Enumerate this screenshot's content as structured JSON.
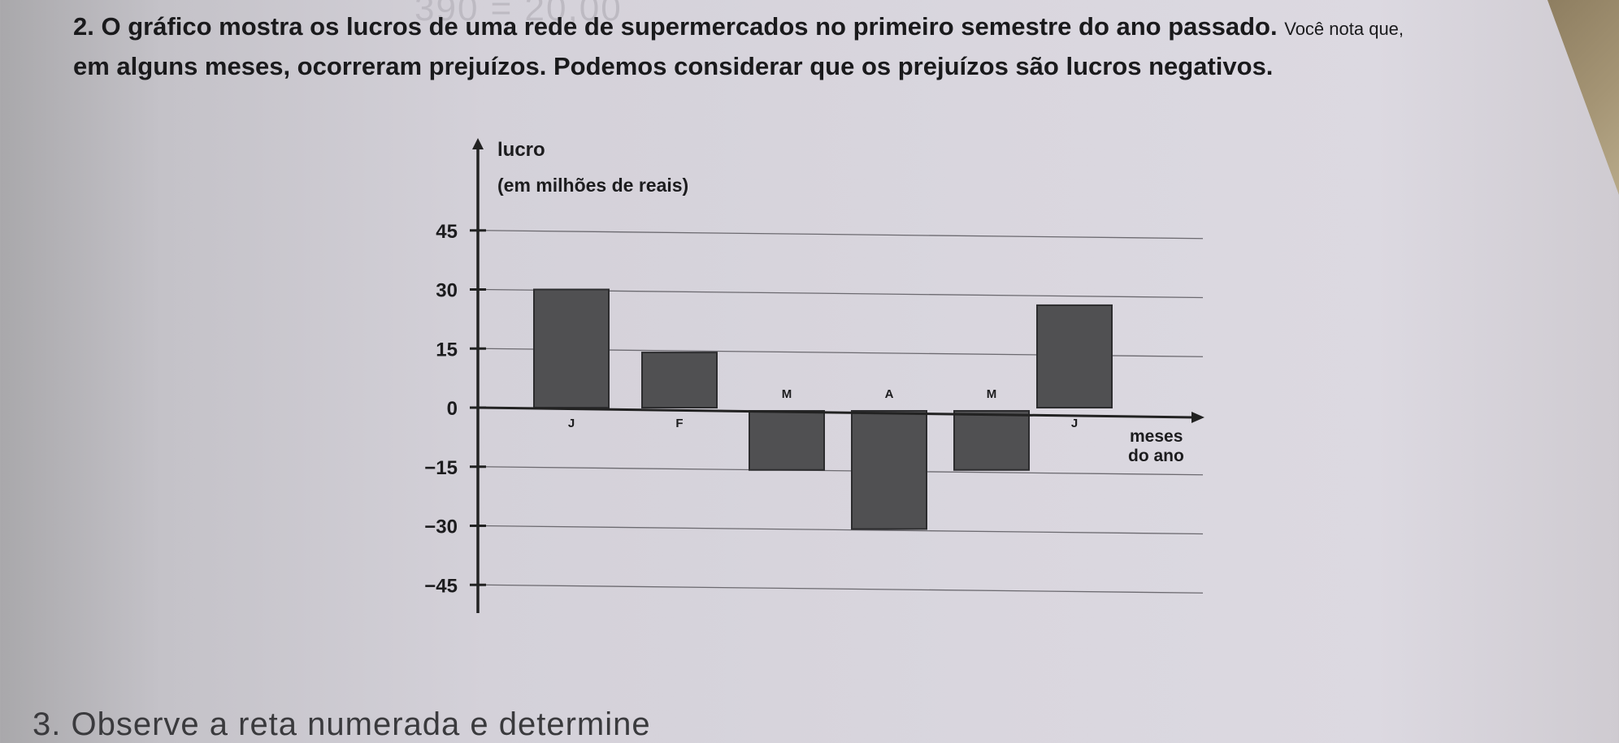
{
  "question": {
    "number": "2.",
    "line1": "O gráfico mostra os lucros de uma rede de supermercados no primeiro semestre do ano passado.",
    "line1_tail": "Você nota que,",
    "line2": "em alguns meses, ocorreram prejuízos. Podemos considerar que os prejuízos são lucros negativos."
  },
  "chart_data": {
    "type": "bar",
    "ylabel": "lucro",
    "ylabel_unit": "(em milhões de reais)",
    "xlabel": "meses do ano",
    "xlabel_line1": "meses",
    "xlabel_line2": "do ano",
    "categories": [
      "J",
      "F",
      "M",
      "A",
      "M",
      "J"
    ],
    "values": [
      30,
      14,
      -15,
      -30,
      -15,
      26
    ],
    "ylim": [
      -45,
      45
    ],
    "yticks": [
      45,
      30,
      15,
      0,
      -15,
      -30,
      -45
    ],
    "ytick_labels": [
      "45",
      "30",
      "15",
      "0",
      "−15",
      "−30",
      "−45"
    ],
    "grid": true,
    "bar_color": "#505052"
  },
  "footer": {
    "next_text": "3. Observe a reta numerada e determine"
  }
}
